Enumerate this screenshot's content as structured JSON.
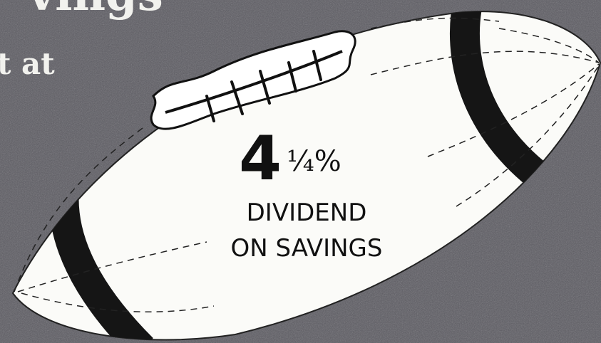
{
  "headline": {
    "line1": "vings",
    "line2": "t at"
  },
  "badge": {
    "number": "4",
    "fraction": "¼%",
    "line1": "DIVIDEND",
    "line2": "ON SAVINGS"
  }
}
